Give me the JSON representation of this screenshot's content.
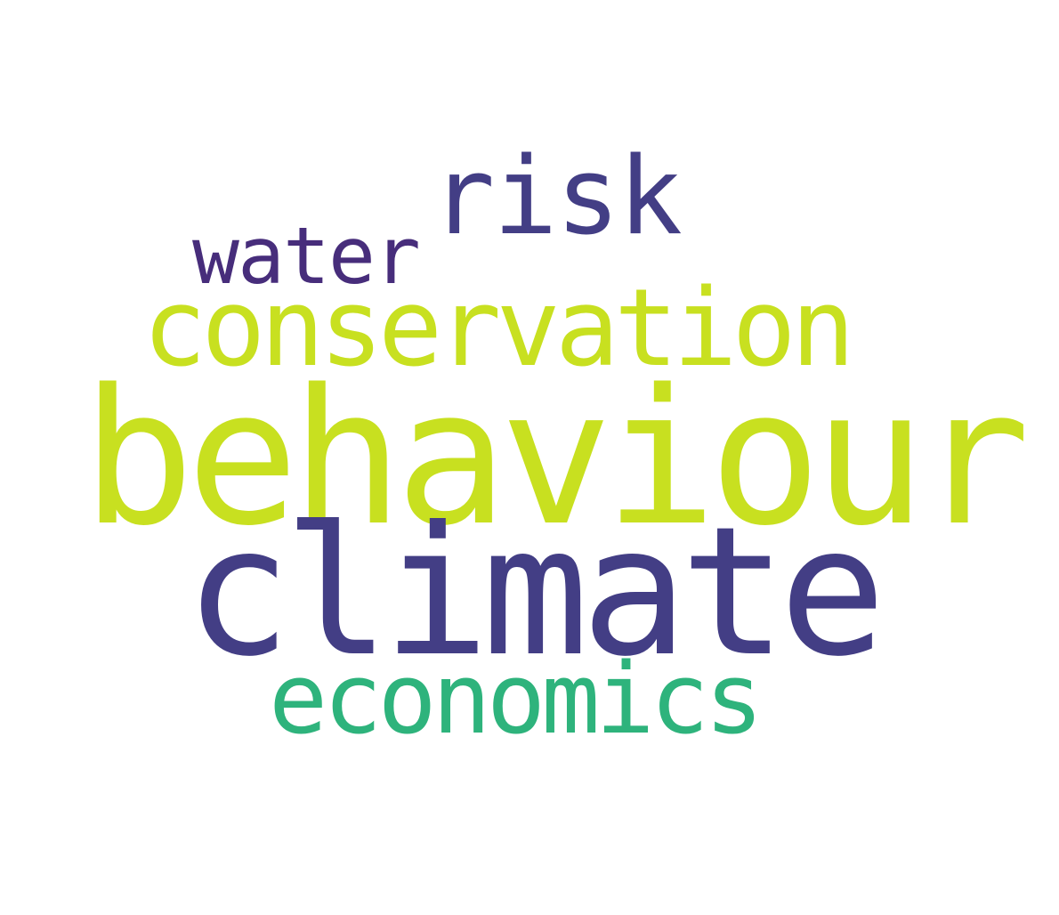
{
  "words": [
    {
      "text": "risk",
      "color": "#433e85"
    },
    {
      "text": "water",
      "color": "#472d7b"
    },
    {
      "text": "conservation",
      "color": "#c8e020"
    },
    {
      "text": "behaviour",
      "color": "#c8e020"
    },
    {
      "text": "climate",
      "color": "#433e85"
    },
    {
      "text": "economics",
      "color": "#2eb37c"
    }
  ]
}
